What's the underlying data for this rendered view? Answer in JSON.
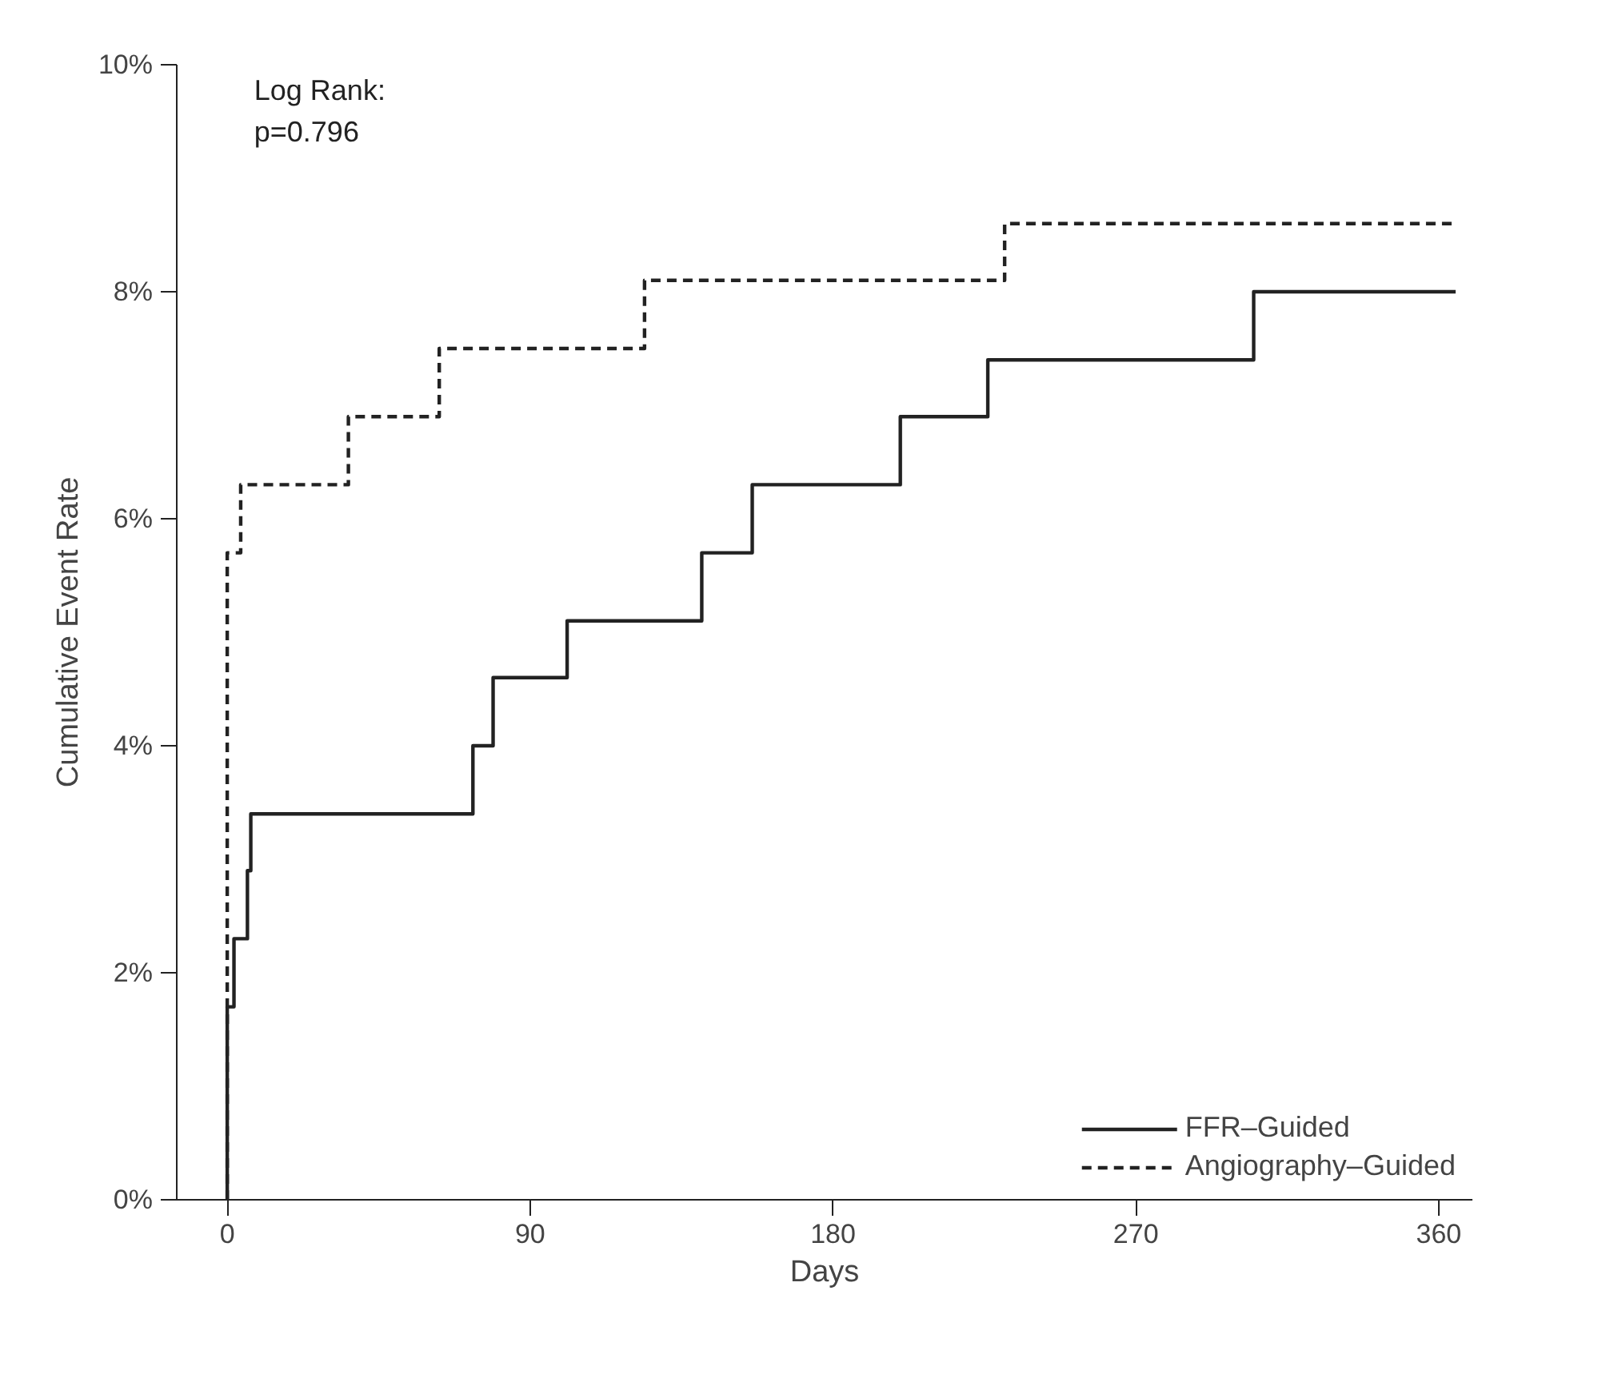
{
  "chart_data": {
    "type": "step",
    "xlabel": "Days",
    "ylabel": "Cumulative Event Rate",
    "annotations": [
      "Log Rank:",
      "p=0.796"
    ],
    "xlim": [
      -15,
      370
    ],
    "xticks": [
      0,
      90,
      180,
      270,
      360
    ],
    "ylim": [
      0,
      10
    ],
    "yticks": [
      {
        "value": 0,
        "label": "0%"
      },
      {
        "value": 2,
        "label": "2%"
      },
      {
        "value": 4,
        "label": "4%"
      },
      {
        "value": 6,
        "label": "6%"
      },
      {
        "value": 8,
        "label": "8%"
      },
      {
        "value": 10,
        "label": "10%"
      }
    ],
    "grid": false,
    "legend": "bottom right",
    "series": [
      {
        "name": "FFR–Guided",
        "color": "#222222",
        "line_style": "solid",
        "x": [
          0,
          0,
          2,
          6,
          7,
          73,
          79,
          101,
          141,
          156,
          200,
          226,
          305,
          365
        ],
        "values": [
          0,
          1.7,
          2.3,
          2.9,
          3.4,
          4.0,
          4.6,
          5.1,
          5.7,
          6.3,
          6.9,
          7.4,
          8.0,
          8.0
        ]
      },
      {
        "name": "Angiography–Guided",
        "color": "#222222",
        "line_style": "dashed",
        "x": [
          0,
          0,
          4,
          36,
          63,
          124,
          231,
          365
        ],
        "values": [
          0,
          5.7,
          6.3,
          6.9,
          7.5,
          8.1,
          8.6,
          8.6
        ]
      }
    ]
  }
}
